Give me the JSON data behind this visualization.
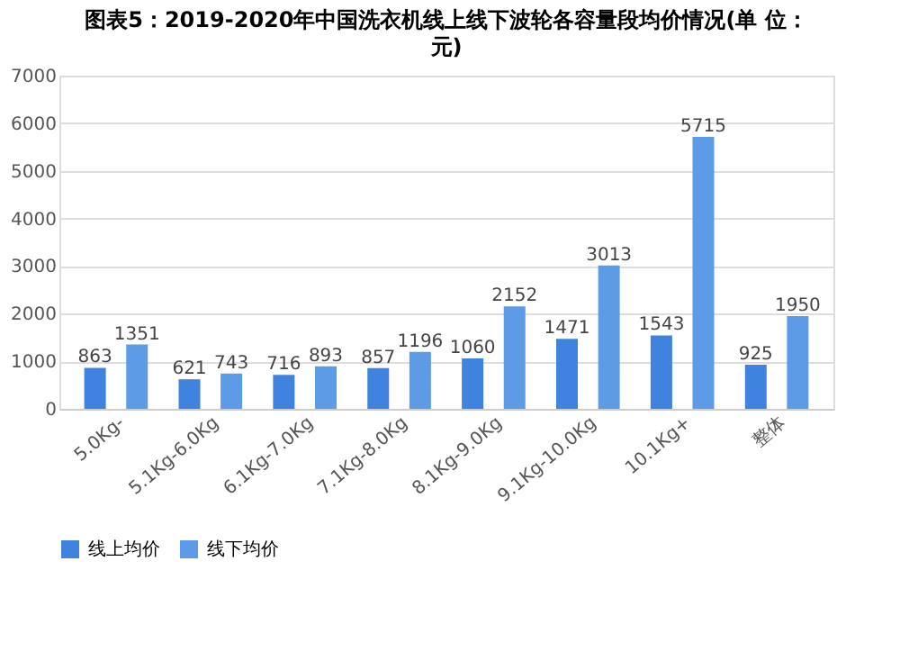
{
  "chart_data": {
    "type": "bar",
    "title": "图表5：2019-2020年中国洗衣机线上线下波轮各容量段均价情况(单 位：元)",
    "categories": [
      "5.0Kg-",
      "5.1Kg-6.0Kg",
      "6.1Kg-7.0Kg",
      "7.1Kg-8.0Kg",
      "8.1Kg-9.0Kg",
      "9.1Kg-10.0Kg",
      "10.1Kg+",
      "整体"
    ],
    "series": [
      {
        "name": "线上均价",
        "color": "#3f83df",
        "values": [
          863,
          621,
          716,
          857,
          1060,
          1471,
          1543,
          925
        ]
      },
      {
        "name": "线下均价",
        "color": "#5d9be6",
        "values": [
          1351,
          743,
          893,
          1196,
          2152,
          3013,
          5715,
          1950
        ]
      }
    ],
    "data_labels": true,
    "ylim": [
      0,
      7000
    ],
    "yticks": [
      0,
      1000,
      2000,
      3000,
      4000,
      5000,
      6000,
      7000
    ],
    "grid": "y",
    "legend": "bottom"
  }
}
